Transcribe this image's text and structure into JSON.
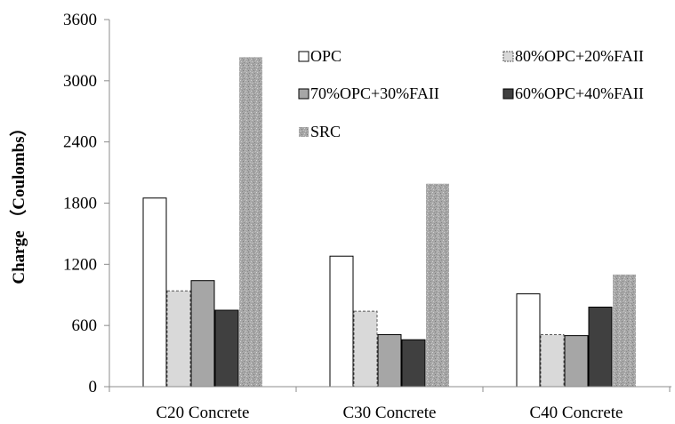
{
  "chart_data": {
    "type": "bar",
    "title": "",
    "xlabel": "",
    "ylabel": "Charge （Coulombs）",
    "ylim": [
      0,
      3600
    ],
    "yticks": [
      0,
      600,
      1200,
      1800,
      2400,
      3000,
      3600
    ],
    "categories": [
      "C20 Concrete",
      "C30 Concrete",
      "C40 Concrete"
    ],
    "series": [
      {
        "name": "OPC",
        "values": [
          1850,
          1280,
          910
        ],
        "fill": "#ffffff",
        "pattern": "none",
        "stroke": "#000000",
        "dashed": false
      },
      {
        "name": "80%OPC+20%FAII",
        "values": [
          940,
          740,
          510
        ],
        "fill": "#d9d9d9",
        "pattern": "none",
        "stroke": "#555555",
        "dashed": true
      },
      {
        "name": "70%OPC+30%FAII",
        "values": [
          1040,
          510,
          500
        ],
        "fill": "#a6a6a6",
        "pattern": "none",
        "stroke": "#000000",
        "dashed": false
      },
      {
        "name": "60%OPC+40%FAII",
        "values": [
          750,
          460,
          780
        ],
        "fill": "#404040",
        "pattern": "none",
        "stroke": "#000000",
        "dashed": false
      },
      {
        "name": "SRC",
        "values": [
          3230,
          1990,
          1100
        ],
        "fill": "#a8a8a8",
        "pattern": "speckle",
        "stroke": "none",
        "dashed": false
      }
    ],
    "grid": false,
    "legend_position": "top-right inside plot"
  }
}
